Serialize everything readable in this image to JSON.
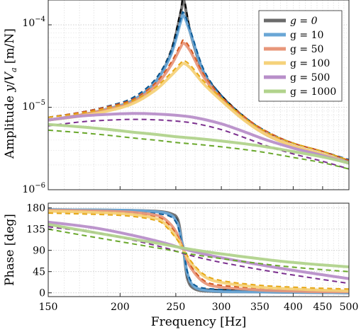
{
  "chart_data": [
    {
      "type": "line",
      "panel": "amplitude",
      "ylabel": "Amplitude y/V_a [m/N]",
      "yscale": "log",
      "xscale": "log",
      "ylim": [
        1e-06,
        0.0002
      ],
      "xlim": [
        150,
        500
      ],
      "grid": true,
      "legend_position": "top-right",
      "ytick_labels": [
        "10^-4",
        "10^-5",
        "10^-6"
      ],
      "series": [
        {
          "name": "g = 0",
          "color": "#6b6b6b",
          "model_color": "#000000",
          "x": [
            150,
            170,
            190,
            210,
            230,
            245,
            255,
            258,
            265,
            280,
            300,
            330,
            360,
            400,
            450,
            500
          ],
          "y": [
            7e-06,
            8e-06,
            9.5e-06,
            1.2e-05,
            2e-05,
            4.5e-05,
            0.00014,
            0.0002,
            8e-05,
            2.5e-05,
            1.3e-05,
            7e-06,
            4.6e-06,
            3.4e-06,
            2.7e-06,
            2.1e-06
          ]
        },
        {
          "name": "g = 10",
          "color": "#6aa7d6",
          "model_color": "#0b5a96",
          "x": [
            150,
            170,
            190,
            210,
            230,
            245,
            255,
            258,
            265,
            280,
            300,
            330,
            360,
            400,
            450,
            500
          ],
          "y": [
            7e-06,
            8e-06,
            9.5e-06,
            1.2e-05,
            2e-05,
            4.3e-05,
            0.00011,
            0.00013,
            8e-05,
            2.6e-05,
            1.3e-05,
            7e-06,
            4.7e-06,
            3.4e-06,
            2.7e-06,
            2.15e-06
          ]
        },
        {
          "name": "g = 50",
          "color": "#e8977a",
          "model_color": "#d55a22",
          "x": [
            150,
            170,
            190,
            210,
            230,
            245,
            255,
            258,
            265,
            280,
            300,
            330,
            360,
            400,
            450,
            500
          ],
          "y": [
            7e-06,
            8e-06,
            9.4e-06,
            1.15e-05,
            1.8e-05,
            3.2e-05,
            5.4e-05,
            6e-05,
            4.8e-05,
            2.3e-05,
            1.25e-05,
            7e-06,
            4.7e-06,
            3.4e-06,
            2.7e-06,
            2.1e-06
          ]
        },
        {
          "name": "g = 100",
          "color": "#f5d27a",
          "model_color": "#e6a817",
          "x": [
            150,
            170,
            190,
            210,
            230,
            245,
            255,
            258,
            265,
            280,
            300,
            330,
            360,
            400,
            450,
            500
          ],
          "y": [
            7e-06,
            7.8e-06,
            9e-06,
            1.1e-05,
            1.6e-05,
            2.4e-05,
            3.2e-05,
            3.4e-05,
            3e-05,
            1.9e-05,
            1.2e-05,
            6.8e-06,
            4.6e-06,
            3.4e-06,
            2.7e-06,
            2.1e-06
          ]
        },
        {
          "name": "g = 500",
          "color": "#b88fc9",
          "model_color": "#7b2f8e",
          "x": [
            150,
            170,
            190,
            210,
            230,
            250,
            270,
            300,
            330,
            360,
            400,
            450,
            500
          ],
          "y": [
            7e-06,
            7.8e-06,
            8.2e-06,
            8.4e-06,
            8.3e-06,
            8e-06,
            7.5e-06,
            6.3e-06,
            5e-06,
            4e-06,
            3.2e-06,
            2.6e-06,
            2.1e-06
          ]
        },
        {
          "name": "g = 1000",
          "color": "#b1d38c",
          "model_color": "#6aa82c",
          "x": [
            150,
            170,
            190,
            210,
            230,
            250,
            270,
            300,
            330,
            360,
            400,
            450,
            500
          ],
          "y": [
            6.2e-06,
            5.8e-06,
            5.4e-06,
            5e-06,
            4.7e-06,
            4.4e-06,
            4.2e-06,
            3.9e-06,
            3.6e-06,
            3.3e-06,
            2.9e-06,
            2.5e-06,
            2.1e-06
          ]
        }
      ]
    },
    {
      "type": "line",
      "panel": "phase",
      "xlabel": "Frequency [Hz]",
      "ylabel": "Phase [deg]",
      "xscale": "log",
      "ylim": [
        -8,
        190
      ],
      "xlim": [
        150,
        500
      ],
      "grid": true,
      "yticks": [
        0,
        45,
        90,
        135,
        180
      ],
      "xticks": [
        150,
        200,
        250,
        300,
        350,
        400,
        450,
        500
      ],
      "series": [
        {
          "name": "g = 0",
          "x": [
            150,
            200,
            230,
            245,
            252,
            256,
            258,
            262,
            270,
            290,
            330,
            400,
            500
          ],
          "y": [
            176,
            175,
            173,
            168,
            155,
            110,
            90,
            30,
            8,
            3,
            2,
            1,
            0
          ]
        },
        {
          "name": "g = 10",
          "x": [
            150,
            200,
            230,
            245,
            252,
            256,
            258,
            262,
            270,
            290,
            330,
            400,
            500
          ],
          "y": [
            176,
            175,
            172,
            165,
            145,
            108,
            90,
            40,
            12,
            4,
            2,
            1,
            0
          ]
        },
        {
          "name": "g = 50",
          "x": [
            150,
            200,
            230,
            240,
            250,
            258,
            265,
            280,
            300,
            350,
            420,
            500
          ],
          "y": [
            175,
            172,
            165,
            155,
            130,
            90,
            55,
            22,
            12,
            6,
            3,
            2
          ]
        },
        {
          "name": "g = 100",
          "x": [
            150,
            200,
            230,
            240,
            250,
            258,
            265,
            280,
            300,
            350,
            420,
            500
          ],
          "y": [
            173,
            168,
            158,
            145,
            120,
            90,
            65,
            35,
            22,
            12,
            7,
            4
          ]
        },
        {
          "name": "g = 500",
          "x": [
            150,
            180,
            210,
            240,
            260,
            290,
            330,
            380,
            440,
            500
          ],
          "y": [
            150,
            138,
            122,
            105,
            92,
            78,
            65,
            52,
            40,
            30
          ]
        },
        {
          "name": "g = 1000",
          "x": [
            150,
            180,
            210,
            240,
            260,
            290,
            330,
            380,
            440,
            500
          ],
          "y": [
            145,
            128,
            114,
            102,
            94,
            85,
            76,
            67,
            60,
            55
          ]
        }
      ]
    }
  ]
}
